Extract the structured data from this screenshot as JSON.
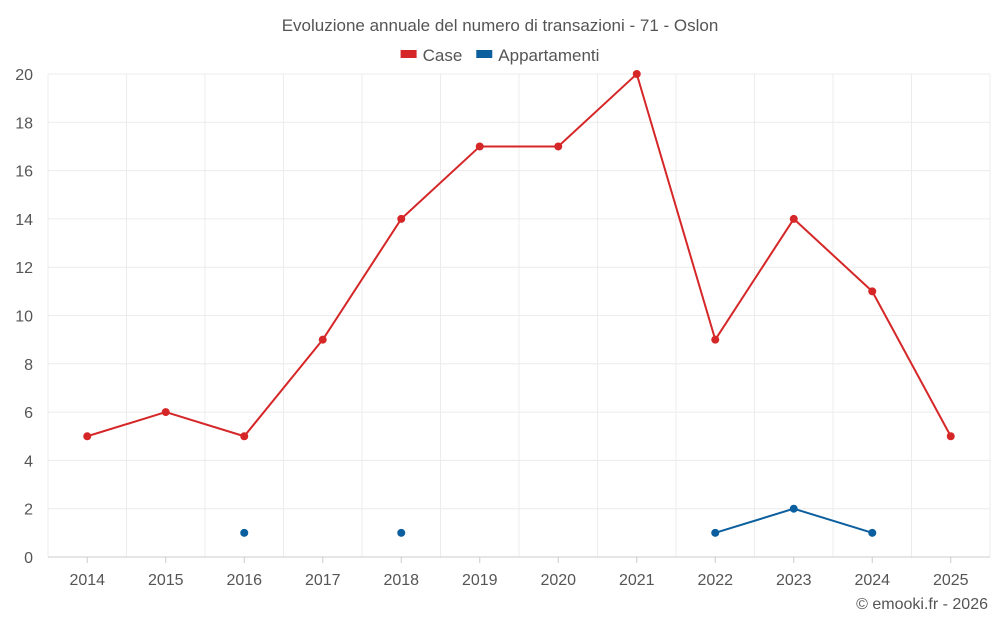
{
  "chart_data": {
    "type": "line",
    "title": "Evoluzione annuale del numero di transazioni - 71 - Oslon",
    "categories": [
      "2014",
      "2015",
      "2016",
      "2017",
      "2018",
      "2019",
      "2020",
      "2021",
      "2022",
      "2023",
      "2024",
      "2025"
    ],
    "series": [
      {
        "name": "Case",
        "color": "#d62728",
        "values": [
          5,
          6,
          5,
          9,
          14,
          17,
          17,
          20,
          9,
          14,
          11,
          5
        ]
      },
      {
        "name": "Appartamenti",
        "color": "#0b5f9e",
        "values": [
          null,
          null,
          1,
          null,
          1,
          null,
          null,
          null,
          1,
          2,
          1,
          null
        ]
      }
    ],
    "ylim": [
      0,
      20
    ],
    "yticks": [
      0,
      2,
      4,
      6,
      8,
      10,
      12,
      14,
      16,
      18,
      20
    ],
    "grid": true,
    "legend_position": "top-center",
    "xlabel": "",
    "ylabel": ""
  },
  "credit": "© emooki.fr - 2026"
}
